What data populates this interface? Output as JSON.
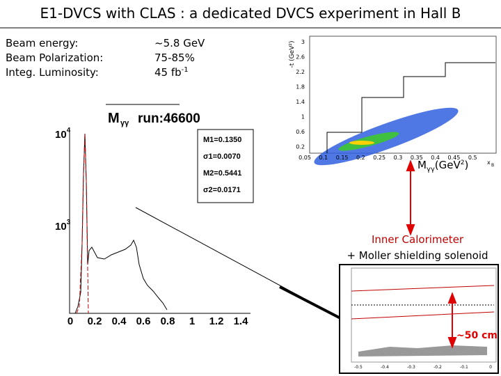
{
  "title": "E1-DVCS with CLAS : a dedicated DVCS experiment in Hall B",
  "params": [
    {
      "label": "Beam energy:",
      "value": "~5.8 GeV"
    },
    {
      "label": "Beam Polarization:",
      "value": "75-85%"
    },
    {
      "label": "Integ. Luminosity:",
      "value": "45 fb",
      "sup": "-1"
    }
  ],
  "histogram": {
    "title": "M",
    "title_sub": "γγ",
    "run": "run:46600",
    "stats": [
      "M1=0.1350",
      "σ1=0.0070",
      "M2=0.5441",
      "σ2=0.0171"
    ],
    "xticks": [
      "0",
      "0.2",
      "0.4",
      "0.6",
      "0.8",
      "1",
      "1.2",
      "1.4"
    ],
    "yticks": [
      {
        "base": "10",
        "exp": "4"
      },
      {
        "base": "10",
        "exp": "3"
      }
    ]
  },
  "kinematics": {
    "ylabel": "-t (GeV²)",
    "yticks": [
      "3",
      "2.6",
      "2.2",
      "1.8",
      "1.4",
      "1",
      "0.6",
      "0.2"
    ],
    "xticks": [
      "0.05",
      "0.1",
      "0.15",
      "0.2",
      "0.25",
      "0.3",
      "0.35",
      "0.4",
      "0.45",
      "0.5"
    ],
    "xlabel": "x",
    "xlabel_sub": "B"
  },
  "mass_label": {
    "main": "M",
    "sub": "γγ",
    "unit": "(GeV",
    "exp": "2",
    "close": ")"
  },
  "calorimeter": [
    "Inner Calorimeter",
    "+ Moller shielding solenoid"
  ],
  "bottom_plot": {
    "xticks": [
      "-0.5",
      "-0.4",
      "-0.3",
      "-0.2",
      "-0.1",
      "0"
    ],
    "distance": "~50 cm"
  }
}
